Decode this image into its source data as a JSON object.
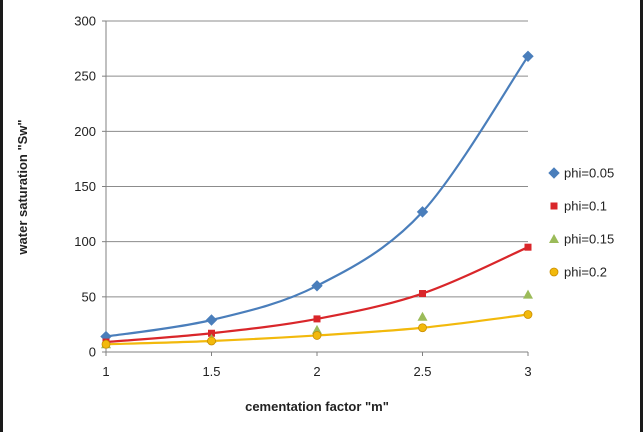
{
  "chart_data": {
    "type": "line",
    "xlabel": "cementation factor \"m\"",
    "ylabel": "water saturation \"Sw\"",
    "x": [
      1,
      1.5,
      2,
      2.5,
      3
    ],
    "xticks": [
      "1",
      "1.5",
      "2",
      "2.5",
      "3"
    ],
    "yticks": [
      "0",
      "50",
      "100",
      "150",
      "200",
      "250",
      "300"
    ],
    "xlim": [
      1,
      3
    ],
    "ylim": [
      0,
      300
    ],
    "grid": "horizontal",
    "legend_position": "right",
    "series": [
      {
        "name": "phi=0.05",
        "values": [
          14,
          29,
          60,
          127,
          268
        ],
        "color": "#4a7ebb",
        "marker": "diamond",
        "curve": true
      },
      {
        "name": "phi=0.1",
        "values": [
          9,
          17,
          30,
          53,
          95
        ],
        "color": "#d9262a",
        "marker": "square",
        "curve": true
      },
      {
        "name": "phi=0.15",
        "values": [
          7,
          12,
          20,
          32,
          52
        ],
        "color": "#9bbb59",
        "marker": "triangle",
        "curve": false
      },
      {
        "name": "phi=0.2",
        "values": [
          7,
          10,
          15,
          22,
          34
        ],
        "color": "#f2b90c",
        "marker": "circle",
        "curve": true
      }
    ]
  }
}
